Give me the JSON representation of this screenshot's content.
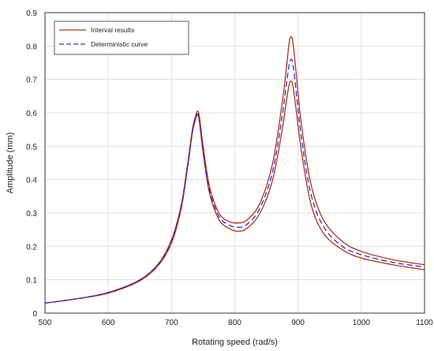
{
  "chart_data": {
    "type": "line",
    "xlabel": "Rotating speed (rad/s)",
    "ylabel": "Amplitude (mm)",
    "xlim": [
      500,
      1100
    ],
    "ylim": [
      0,
      0.9
    ],
    "x_ticks": [
      500,
      600,
      700,
      800,
      900,
      1000,
      1100
    ],
    "y_ticks": [
      0,
      0.1,
      0.2,
      0.3,
      0.4,
      0.5,
      0.6,
      0.7,
      0.8,
      0.9
    ],
    "x_tick_labels": [
      "500",
      "600",
      "700",
      "800",
      "900",
      "1000",
      "1100"
    ],
    "y_tick_labels": [
      "0",
      "0.1",
      "0.2",
      "0.3",
      "0.4",
      "0.5",
      "0.6",
      "0.7",
      "0.8",
      "0.9"
    ],
    "grid": true,
    "legend": {
      "placement": "top-left",
      "entries": [
        {
          "label": "Interval results",
          "color": "#b0301a",
          "style": "solid"
        },
        {
          "label": "Deterministic curve",
          "color": "#2a2ad8",
          "style": "dashed"
        }
      ]
    },
    "series": [
      {
        "name": "Interval results",
        "role": "upper-bound",
        "color": "#b0301a",
        "style": "solid",
        "x": [
          500,
          550,
          600,
          650,
          680,
          700,
          715,
          725,
          733,
          738,
          741,
          744,
          750,
          760,
          775,
          790,
          805,
          820,
          840,
          860,
          875,
          882,
          886,
          889,
          892,
          897,
          905,
          920,
          940,
          970,
          1000,
          1050,
          1100
        ],
        "y": [
          0.03,
          0.043,
          0.062,
          0.1,
          0.15,
          0.22,
          0.32,
          0.44,
          0.55,
          0.59,
          0.605,
          0.59,
          0.5,
          0.38,
          0.3,
          0.275,
          0.27,
          0.28,
          0.33,
          0.45,
          0.63,
          0.74,
          0.81,
          0.828,
          0.81,
          0.72,
          0.57,
          0.39,
          0.28,
          0.215,
          0.185,
          0.16,
          0.145
        ]
      },
      {
        "name": "Interval results",
        "role": "lower-bound",
        "color": "#b0301a",
        "style": "solid",
        "x": [
          500,
          550,
          600,
          650,
          680,
          700,
          715,
          725,
          733,
          738,
          741,
          744,
          750,
          760,
          775,
          790,
          805,
          820,
          840,
          860,
          875,
          882,
          886,
          889,
          892,
          897,
          905,
          920,
          940,
          970,
          1000,
          1050,
          1100
        ],
        "y": [
          0.03,
          0.043,
          0.06,
          0.097,
          0.145,
          0.21,
          0.31,
          0.43,
          0.54,
          0.58,
          0.593,
          0.575,
          0.48,
          0.36,
          0.28,
          0.255,
          0.245,
          0.255,
          0.3,
          0.4,
          0.55,
          0.64,
          0.685,
          0.695,
          0.68,
          0.61,
          0.49,
          0.33,
          0.24,
          0.19,
          0.165,
          0.145,
          0.13
        ]
      },
      {
        "name": "Deterministic curve",
        "color": "#2a2ad8",
        "style": "dashed",
        "x": [
          500,
          550,
          600,
          650,
          680,
          700,
          715,
          725,
          733,
          738,
          741,
          744,
          750,
          760,
          775,
          790,
          805,
          820,
          840,
          860,
          875,
          882,
          886,
          889,
          892,
          897,
          905,
          920,
          940,
          970,
          1000,
          1050,
          1100
        ],
        "y": [
          0.03,
          0.043,
          0.061,
          0.098,
          0.147,
          0.215,
          0.315,
          0.435,
          0.545,
          0.585,
          0.597,
          0.582,
          0.49,
          0.37,
          0.29,
          0.265,
          0.257,
          0.267,
          0.315,
          0.425,
          0.59,
          0.69,
          0.745,
          0.76,
          0.745,
          0.665,
          0.53,
          0.36,
          0.26,
          0.2,
          0.175,
          0.152,
          0.138
        ]
      }
    ]
  }
}
